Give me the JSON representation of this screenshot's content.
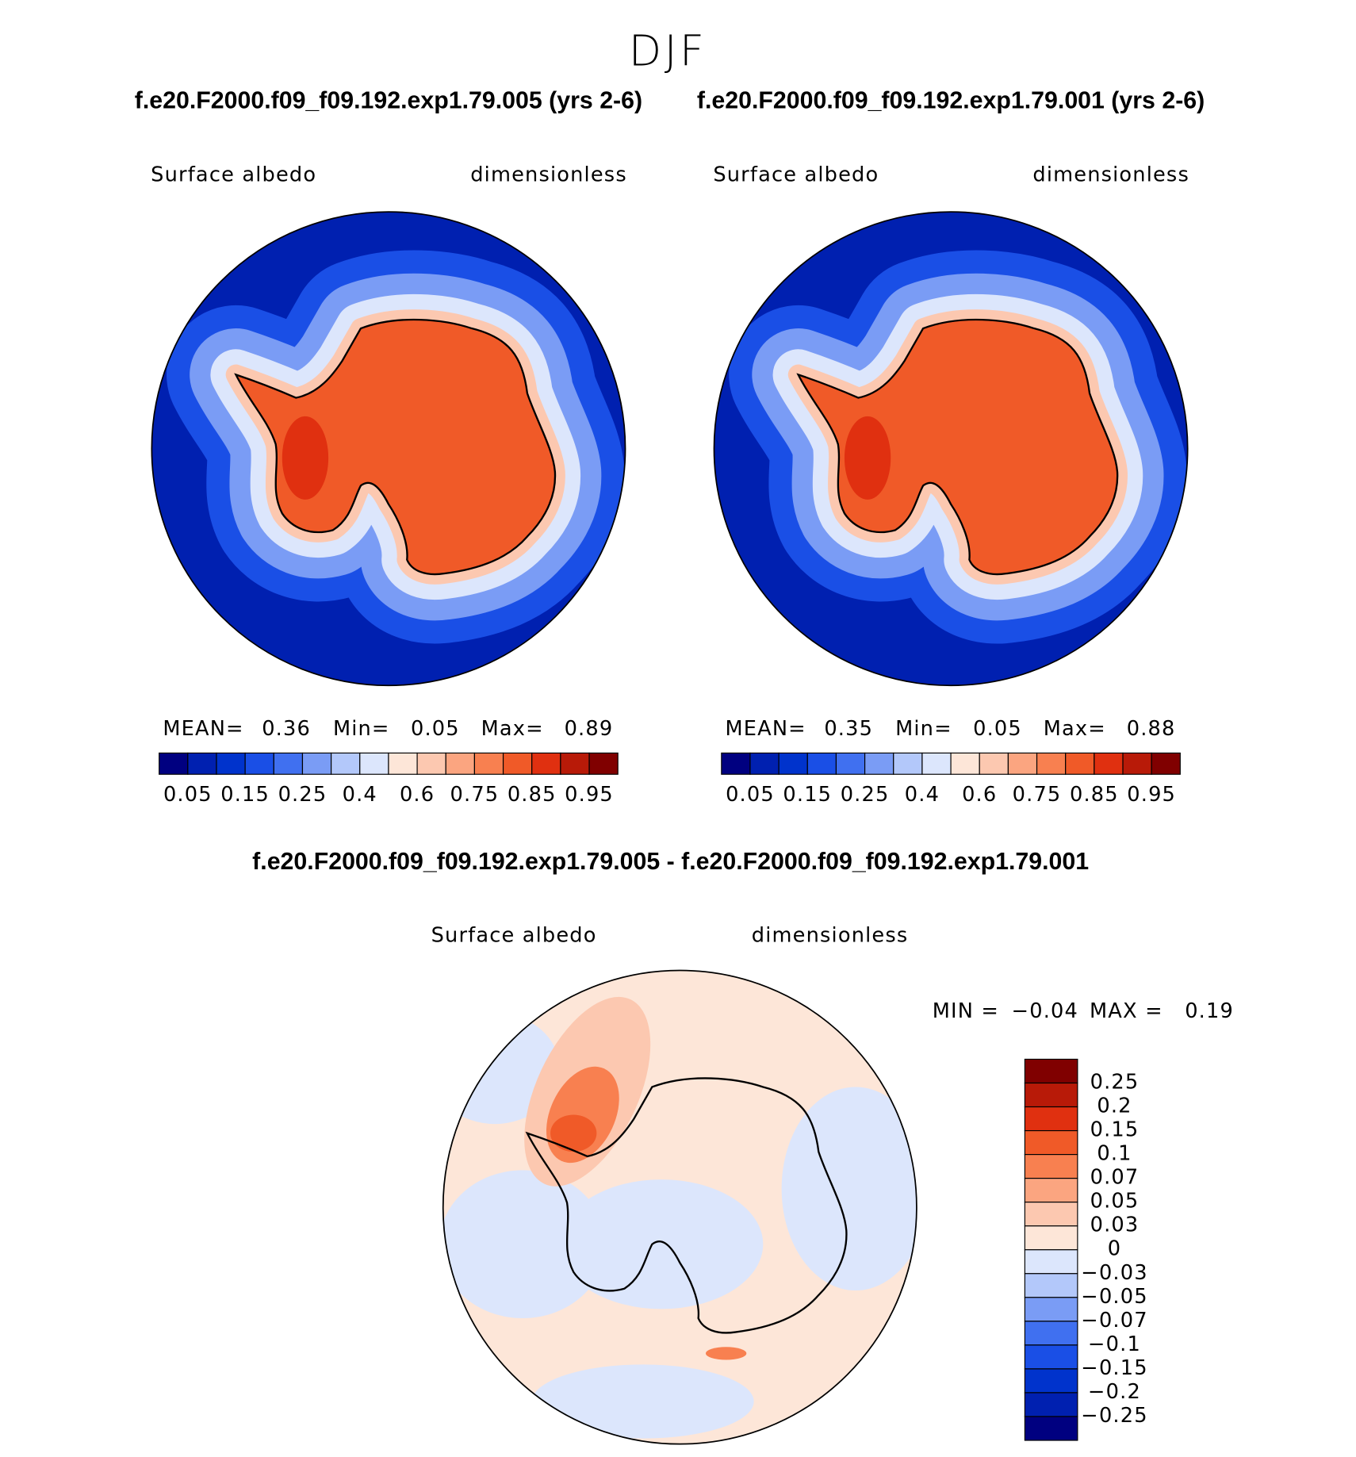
{
  "title": "DJF",
  "panels": [
    {
      "case": "f.e20.F2000.f09_f09.192.exp1.79.005 (yrs 2-6)",
      "field": "Surface albedo",
      "units": "dimensionless",
      "stats": [
        {
          "label": "MEAN=",
          "value": "0.36"
        },
        {
          "label": "Min=",
          "value": "0.05"
        },
        {
          "label": "Max=",
          "value": "0.89"
        }
      ],
      "colorbar": {
        "colors": [
          "#000080",
          "#0020b0",
          "#0033cc",
          "#1a4fe6",
          "#4070f0",
          "#7a9cf5",
          "#b3c8fa",
          "#dce6fc",
          "#fde6d8",
          "#fcc8b0",
          "#fba580",
          "#f88050",
          "#f05a28",
          "#e03010",
          "#b81a08",
          "#800000"
        ],
        "labels": [
          "0.05",
          "0.15",
          "0.25",
          "0.4",
          "0.6",
          "0.75",
          "0.85",
          "0.95"
        ]
      }
    },
    {
      "case": "f.e20.F2000.f09_f09.192.exp1.79.001 (yrs 2-6)",
      "field": "Surface albedo",
      "units": "dimensionless",
      "stats": [
        {
          "label": "MEAN=",
          "value": "0.35"
        },
        {
          "label": "Min=",
          "value": "0.05"
        },
        {
          "label": "Max=",
          "value": "0.88"
        }
      ],
      "colorbar": {
        "colors": [
          "#000080",
          "#0020b0",
          "#0033cc",
          "#1a4fe6",
          "#4070f0",
          "#7a9cf5",
          "#b3c8fa",
          "#dce6fc",
          "#fde6d8",
          "#fcc8b0",
          "#fba580",
          "#f88050",
          "#f05a28",
          "#e03010",
          "#b81a08",
          "#800000"
        ],
        "labels": [
          "0.05",
          "0.15",
          "0.25",
          "0.4",
          "0.6",
          "0.75",
          "0.85",
          "0.95"
        ]
      }
    }
  ],
  "difference": {
    "title": "f.e20.F2000.f09_f09.192.exp1.79.005 - f.e20.F2000.f09_f09.192.exp1.79.001",
    "field": "Surface albedo",
    "units": "dimensionless",
    "stats": [
      {
        "label": "MIN =",
        "value": "−0.04"
      },
      {
        "label": "MAX =",
        "value": "0.19"
      }
    ],
    "colorbar": {
      "colors": [
        "#800000",
        "#b81a08",
        "#e03010",
        "#f05a28",
        "#f88050",
        "#fba580",
        "#fcc8b0",
        "#fde6d8",
        "#dce6fc",
        "#b3c8fa",
        "#7a9cf5",
        "#4070f0",
        "#1a4fe6",
        "#0033cc",
        "#0020b0",
        "#000080"
      ],
      "labels": [
        "0.25",
        "0.2",
        "0.15",
        "0.1",
        "0.07",
        "0.05",
        "0.03",
        "0",
        "−0.03",
        "−0.05",
        "−0.07",
        "−0.1",
        "−0.15",
        "−0.2",
        "−0.25"
      ]
    }
  }
}
